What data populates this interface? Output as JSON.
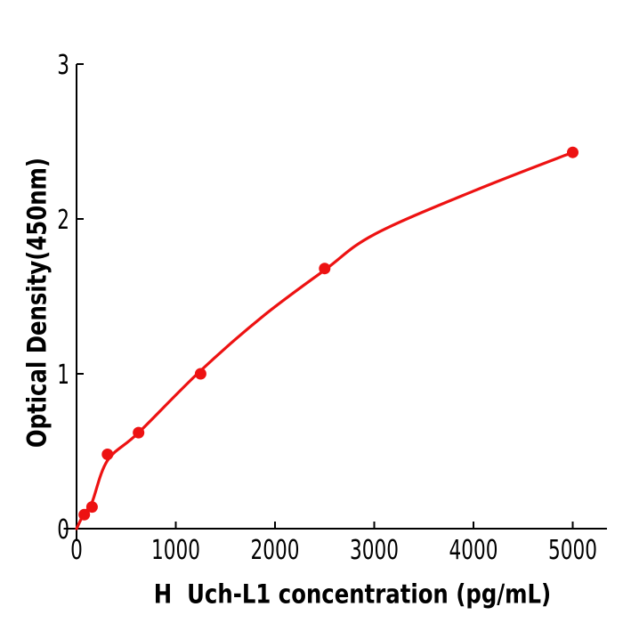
{
  "figure": {
    "background": "#ffffff"
  },
  "chart_data": {
    "type": "scatter",
    "title": "",
    "xlabel": "H  Uch-L1 concentration (pg/mL)",
    "ylabel": "Optical Density(450nm)",
    "x_ticks": [
      0,
      1000,
      2000,
      3000,
      4000,
      5000
    ],
    "y_ticks": [
      0,
      1,
      2,
      3
    ],
    "xlim": [
      -130,
      5345
    ],
    "ylim": [
      -0.08,
      3.0
    ],
    "grid": false,
    "points": [
      [
        78,
        0.09
      ],
      [
        156,
        0.14
      ],
      [
        312,
        0.48
      ],
      [
        625,
        0.62
      ],
      [
        1250,
        1.0
      ],
      [
        2500,
        1.68
      ],
      [
        5000,
        2.43
      ]
    ],
    "fit_curve": [
      [
        0,
        0
      ],
      [
        78,
        0.1
      ],
      [
        156,
        0.17
      ],
      [
        312,
        0.44
      ],
      [
        625,
        0.62
      ],
      [
        1250,
        1.02
      ],
      [
        1875,
        1.37
      ],
      [
        2500,
        1.67
      ],
      [
        3000,
        1.9
      ],
      [
        4000,
        2.18
      ],
      [
        5000,
        2.43
      ]
    ],
    "colors": {
      "curve": "#ed1212",
      "points": "#ed1212",
      "axis": "#000000",
      "text": "#000000"
    }
  }
}
